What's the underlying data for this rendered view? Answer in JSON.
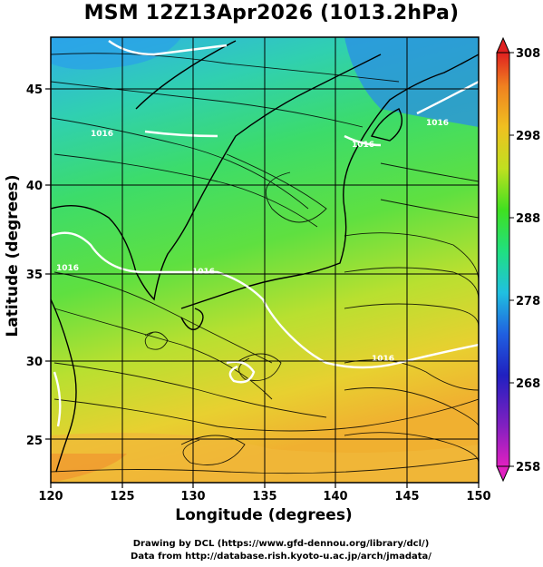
{
  "title": "MSM 12Z13Apr2026 (1013.2hPa)",
  "axes": {
    "xlabel": "Longitude (degrees)",
    "ylabel": "Latitude  (degrees)",
    "xticks": [
      "120",
      "125",
      "130",
      "135",
      "140",
      "145",
      "150"
    ],
    "yticks": [
      "25",
      "30",
      "35",
      "40",
      "45"
    ]
  },
  "colorbar": {
    "ticks": [
      "258",
      "268",
      "278",
      "288",
      "298",
      "308"
    ],
    "colors": [
      "#e020c0",
      "#8020c0",
      "#2020c0",
      "#2060e0",
      "#20c0e0",
      "#20e080",
      "#40e020",
      "#c0e020",
      "#f0c020",
      "#f08020",
      "#e02020"
    ]
  },
  "contour_labels": [
    "1016",
    "1016",
    "1016",
    "1016",
    "1016",
    "1016"
  ],
  "credits": {
    "line1": "Drawing by DCL (https://www.gfd-dennou.org/library/dcl/)",
    "line2": "Data from http://database.rish.kyoto-u.ac.jp/arch/jmadata/"
  },
  "chart_data": {
    "type": "heatmap",
    "title": "MSM 12Z13Apr2026 (1013.2hPa)",
    "xlabel": "Longitude (degrees)",
    "ylabel": "Latitude  (degrees)",
    "xlim": [
      120,
      150
    ],
    "ylim": [
      22.4,
      47.6
    ],
    "colorbar_range": [
      258,
      308
    ],
    "colorbar_ticks": [
      258,
      268,
      278,
      288,
      298,
      308
    ]
  }
}
